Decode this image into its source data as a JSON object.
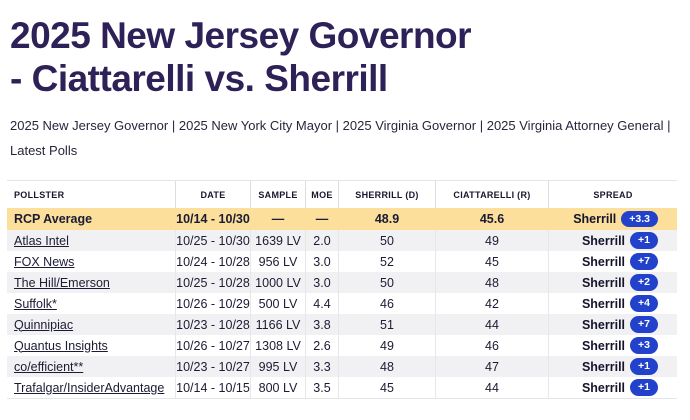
{
  "header": {
    "title_line1": "2025 New Jersey Governor",
    "title_line2": "- Ciattarelli vs. Sherrill"
  },
  "nav": {
    "separator": " | ",
    "items": [
      "2025 New Jersey Governor",
      "2025 New York City Mayor",
      "2025 Virginia Governor",
      "2025 Virginia Attorney General",
      "Latest Polls"
    ]
  },
  "table": {
    "headers": [
      "POLLSTER",
      "DATE",
      "SAMPLE",
      "MOE",
      "SHERRILL (D)",
      "CIATTARELLI (R)",
      "SPREAD"
    ],
    "average_row": {
      "pollster": "RCP Average",
      "date": "10/14 - 10/30",
      "sample": "—",
      "moe": "—",
      "sherrill": "48.9",
      "ciattarelli": "45.6",
      "spread_leader": "Sherrill",
      "spread_value": "+3.3"
    },
    "rows": [
      {
        "pollster": "Atlas Intel",
        "date": "10/25 - 10/30",
        "sample": "1639 LV",
        "moe": "2.0",
        "sherrill": "50",
        "ciattarelli": "49",
        "spread_leader": "Sherrill",
        "spread_value": "+1"
      },
      {
        "pollster": "FOX News",
        "date": "10/24 - 10/28",
        "sample": "956 LV",
        "moe": "3.0",
        "sherrill": "52",
        "ciattarelli": "45",
        "spread_leader": "Sherrill",
        "spread_value": "+7"
      },
      {
        "pollster": "The Hill/Emerson",
        "date": "10/25 - 10/28",
        "sample": "1000 LV",
        "moe": "3.0",
        "sherrill": "50",
        "ciattarelli": "48",
        "spread_leader": "Sherrill",
        "spread_value": "+2"
      },
      {
        "pollster": "Suffolk*",
        "date": "10/26 - 10/29",
        "sample": "500 LV",
        "moe": "4.4",
        "sherrill": "46",
        "ciattarelli": "42",
        "spread_leader": "Sherrill",
        "spread_value": "+4"
      },
      {
        "pollster": "Quinnipiac",
        "date": "10/23 - 10/28",
        "sample": "1166 LV",
        "moe": "3.8",
        "sherrill": "51",
        "ciattarelli": "44",
        "spread_leader": "Sherrill",
        "spread_value": "+7"
      },
      {
        "pollster": "Quantus Insights",
        "date": "10/26 - 10/27",
        "sample": "1308 LV",
        "moe": "2.6",
        "sherrill": "49",
        "ciattarelli": "46",
        "spread_leader": "Sherrill",
        "spread_value": "+3"
      },
      {
        "pollster": "co/efficient**",
        "date": "10/23 - 10/27",
        "sample": "995 LV",
        "moe": "3.3",
        "sherrill": "48",
        "ciattarelli": "47",
        "spread_leader": "Sherrill",
        "spread_value": "+1"
      },
      {
        "pollster": "Trafalgar/InsiderAdvantage",
        "date": "10/14 - 10/15",
        "sample": "800 LV",
        "moe": "3.5",
        "sherrill": "45",
        "ciattarelli": "44",
        "spread_leader": "Sherrill",
        "spread_value": "+1"
      }
    ]
  },
  "colors": {
    "title_color": "#2e2157",
    "accent_yellow": "#fbdf9b",
    "badge_blue": "#2342cb",
    "row_alt": "#f1f1f4",
    "ink": "#1b1b33"
  }
}
